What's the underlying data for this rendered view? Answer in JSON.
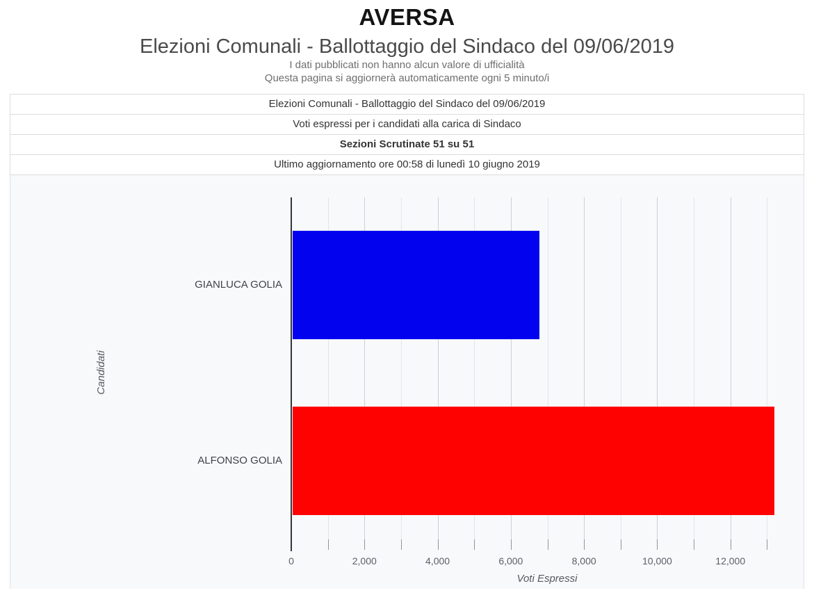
{
  "header": {
    "title": "AVERSA",
    "subtitle": "Elezioni Comunali - Ballottaggio del Sindaco del 09/06/2019",
    "note1": "I dati pubblicati non hanno alcun valore di ufficialità",
    "note2": "Questa pagina si aggiornerà automaticamente ogni 5 minuto/i"
  },
  "info_table": {
    "rows": [
      {
        "text": "Elezioni Comunali - Ballottaggio del Sindaco del 09/06/2019",
        "bold": false
      },
      {
        "text": "Voti espressi per i candidati alla carica di Sindaco",
        "bold": false
      },
      {
        "text": "Sezioni Scrutinate 51 su 51",
        "bold": true
      },
      {
        "text": "Ultimo aggiornamento ore 00:58 di lunedì 10 giugno 2019",
        "bold": false
      }
    ]
  },
  "chart_data": {
    "type": "bar",
    "orientation": "horizontal",
    "title": "",
    "categories": [
      "GIANLUCA GOLIA",
      "ALFONSO GOLIA"
    ],
    "values": [
      6740,
      13170
    ],
    "bar_colors": [
      "#0202ee",
      "#fe0202"
    ],
    "xlabel": "Voti Espressi",
    "ylabel": "Candidati",
    "xlim": [
      0,
      14000
    ],
    "x_tick_interval": 1000,
    "x_label_interval": 2000,
    "x_tick_labels": [
      "0",
      "2,000",
      "4,000",
      "6,000",
      "8,000",
      "10,000",
      "12,000"
    ],
    "grid": true,
    "legend": "none",
    "background": "#f8f9fb",
    "axis_line_color": "#34343c"
  }
}
